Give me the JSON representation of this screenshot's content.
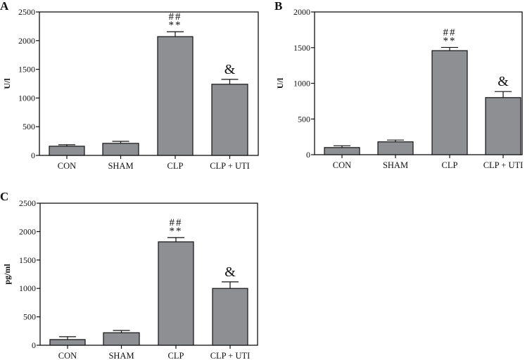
{
  "chart_data": [
    {
      "panel": "A",
      "type": "bar",
      "title": "",
      "xlabel": "",
      "ylabel": "U/l",
      "categories": [
        "CON",
        "SHAM",
        "CLP",
        "CLP + UTI"
      ],
      "values": [
        160,
        210,
        2070,
        1240
      ],
      "errors": [
        25,
        35,
        85,
        85
      ],
      "annotations": [
        {
          "category": "CLP",
          "lines": [
            "##",
            "**"
          ]
        },
        {
          "category": "CLP + UTI",
          "lines": [
            "&"
          ]
        }
      ],
      "ylim": [
        0,
        2500
      ],
      "yticks": [
        0,
        500,
        1000,
        1500,
        2000,
        2500
      ],
      "ytick_labels": [
        "0",
        "500",
        "1000",
        "1500",
        "2000",
        "2500"
      ],
      "bar_color": "#8e8f93",
      "grid": false
    },
    {
      "panel": "B",
      "type": "bar",
      "title": "",
      "xlabel": "",
      "ylabel": "U/l",
      "categories": [
        "CON",
        "SHAM",
        "CLP",
        "CLP + UTI"
      ],
      "values": [
        100,
        180,
        1458,
        800
      ],
      "errors": [
        25,
        25,
        45,
        85
      ],
      "annotations": [
        {
          "category": "CLP",
          "lines": [
            "##",
            "**"
          ]
        },
        {
          "category": "CLP + UTI",
          "lines": [
            "&"
          ]
        }
      ],
      "ylim": [
        0,
        2000
      ],
      "yticks": [
        0,
        500,
        1000,
        1500,
        2000
      ],
      "ytick_labels": [
        "0",
        "500",
        "1000",
        "1500",
        "2000"
      ],
      "bar_color": "#8e8f93",
      "grid": false
    },
    {
      "panel": "C",
      "type": "bar",
      "title": "",
      "xlabel": "",
      "ylabel": "pg/ml",
      "categories": [
        "CON",
        "SHAM",
        "CLP",
        "CLP + UTI"
      ],
      "values": [
        100,
        220,
        1820,
        1000
      ],
      "errors": [
        50,
        40,
        75,
        115
      ],
      "annotations": [
        {
          "category": "CLP",
          "lines": [
            "##",
            "**"
          ]
        },
        {
          "category": "CLP + UTI",
          "lines": [
            "&"
          ]
        }
      ],
      "ylim": [
        0,
        2500
      ],
      "yticks": [
        0,
        500,
        1000,
        1500,
        2000,
        2500
      ],
      "ytick_labels": [
        "0",
        "500",
        "1000",
        "1500",
        "2000",
        "2500"
      ],
      "bar_color": "#8e8f93",
      "grid": false
    }
  ]
}
